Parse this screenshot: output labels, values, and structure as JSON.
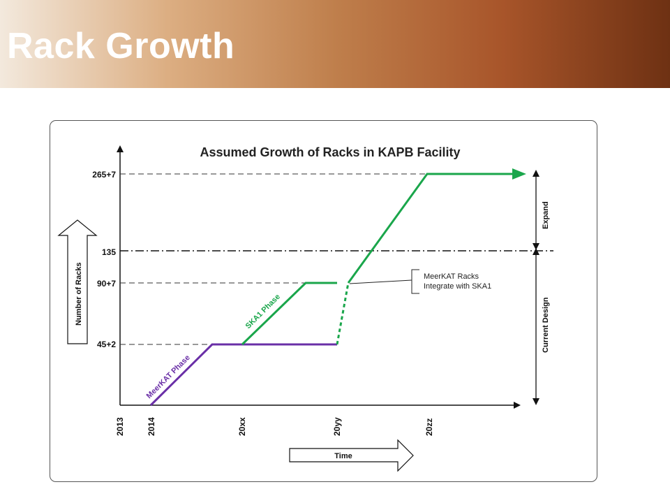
{
  "slide": {
    "title": "Rack Growth"
  },
  "chart_data": {
    "type": "line",
    "title": "Assumed Growth of Racks in KAPB Facility",
    "xlabel": "Time",
    "ylabel": "Number of Racks",
    "x_tick_labels": [
      "2013",
      "2014",
      "20xx",
      "20yy",
      "20zz"
    ],
    "y_tick_labels": [
      "45+2",
      "90+7",
      "135",
      "265+7"
    ],
    "series": [
      {
        "name": "MeerKAT Phase",
        "color": "#6a2fa7",
        "points": [
          [
            "2014",
            0
          ],
          [
            "",
            47
          ],
          [
            "20xx",
            47
          ],
          [
            "20yy",
            47
          ]
        ]
      },
      {
        "name": "SKA1 Phase",
        "color": "#1aa64b",
        "points": [
          [
            "20xx",
            47
          ],
          [
            "",
            97
          ],
          [
            "20yy",
            97
          ],
          [
            "",
            97
          ],
          [
            "20zz",
            272
          ],
          [
            "",
            272
          ]
        ]
      }
    ],
    "dashed_segment_color": "#1aa64b",
    "annotations": {
      "integrate": [
        "MeerKAT Racks",
        "Integrate with SKA1"
      ],
      "expand": "Expand",
      "current_design": "Current Design"
    },
    "reference_line": "135"
  }
}
